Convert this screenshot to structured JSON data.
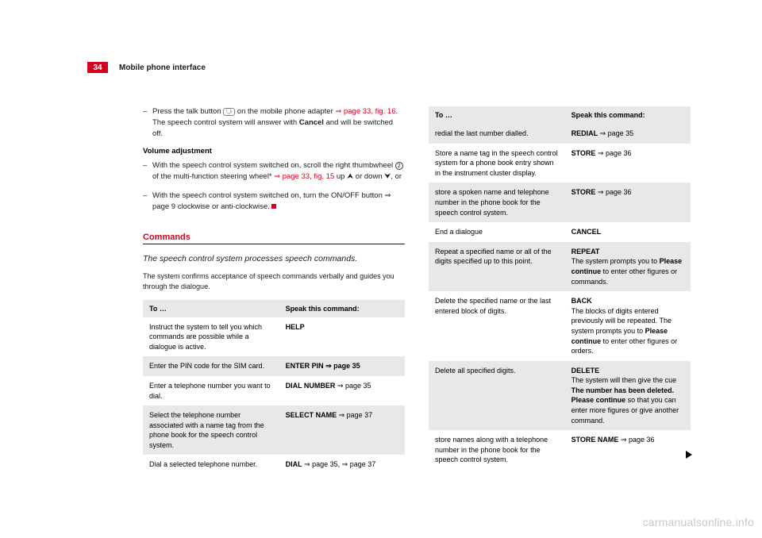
{
  "page_number": "34",
  "header_title": "Mobile phone interface",
  "col1": {
    "list1": {
      "prefix": "Press the talk button ",
      "icon": "🗣",
      "mid": " on the mobile phone adapter ",
      "link": "⇒ page 33, fig. 16",
      "rest1": ". The speech control system will answer with ",
      "bold": "Cancel",
      "rest2": " and will be switched off."
    },
    "vol_heading": "Volume adjustment",
    "list2": {
      "prefix": "With the speech control system switched on, scroll the right thumbwheel ",
      "circle": "2",
      "mid": " of the multi-function steering wheel* ",
      "link": "⇒ page 33, fig. 15",
      "rest": " up ⮝ or down ⮟, or"
    },
    "list3": "With the speech control system switched on, turn the ON/OFF button ⇒ page 9 clockwise or anti-clockwise. ",
    "section_title": "Commands",
    "lede": "The speech control system processes speech commands.",
    "caption": "The system confirms acceptance of speech commands verbally and guides you through the dialogue.",
    "table": {
      "h1": "To …",
      "h2": "Speak this command:",
      "rows": [
        {
          "a": "Instruct the system to tell you which commands are possible while a dialogue is active.",
          "b": "HELP",
          "shade": false
        },
        {
          "a": "Enter the PIN code for the SIM card.",
          "b": "ENTER PIN ⇒ page 35",
          "bbold": "ENTER PIN",
          "brest": " ⇒ page 35",
          "shade": true
        },
        {
          "a": "Enter a telephone number you want to dial.",
          "bbold": "DIAL NUMBER",
          "brest": " ⇒ page 35",
          "shade": false
        },
        {
          "a": "Select the telephone number associated with a name tag from the phone book for the speech control system.",
          "bbold": "SELECT NAME",
          "brest": " ⇒ page 37",
          "shade": true
        },
        {
          "a": "Dial a selected telephone number.",
          "bbold": "DIAL",
          "brest": " ⇒ page 35, ⇒ page 37",
          "shade": false
        }
      ]
    }
  },
  "col2": {
    "table": {
      "h1": "To …",
      "h2": "Speak this command:",
      "rows": [
        {
          "a": "redial the last number dialled.",
          "bbold": "REDIAL",
          "brest": " ⇒ page 35",
          "shade": true
        },
        {
          "a": "Store a name tag in the speech control system for a phone book entry shown in the instrument cluster display.",
          "bbold": "STORE",
          "brest": " ⇒ page 36",
          "shade": false
        },
        {
          "a": "store a spoken name and telephone number in the phone book for the speech control system.",
          "bbold": "STORE",
          "brest": " ⇒ page 36",
          "shade": true
        },
        {
          "a": "End a dialogue",
          "bbold": "CANCEL",
          "brest": "",
          "shade": false
        },
        {
          "a": "Repeat a specified name or all of the digits specified up to this point.",
          "bbold": "REPEAT",
          "bextra1": "The system prompts you to ",
          "bextra_bold1": "Please continue",
          "bextra2": " to enter other figures or commands.",
          "shade": true
        },
        {
          "a": "Delete the specified name or the last entered block of digits.",
          "bbold": "BACK",
          "bextra1": "The blocks of digits entered previously will be repeated. The system prompts you to ",
          "bextra_bold1": "Please continue",
          "bextra2": " to enter other figures or orders.",
          "shade": false
        },
        {
          "a": "Delete all specified digits.",
          "bbold": "DELETE",
          "bextra1": "The system will then give the cue ",
          "bextra_bold1": "The number has been deleted. Please continue",
          "bextra2": " so that you can enter more figures or give another command.",
          "shade": true
        },
        {
          "a": "store names along with a telephone number in the phone book for the speech control system.",
          "bbold": "STORE NAME",
          "brest": " ⇒ page 36",
          "shade": false
        }
      ]
    }
  },
  "watermark": "carmanualsonline.info"
}
